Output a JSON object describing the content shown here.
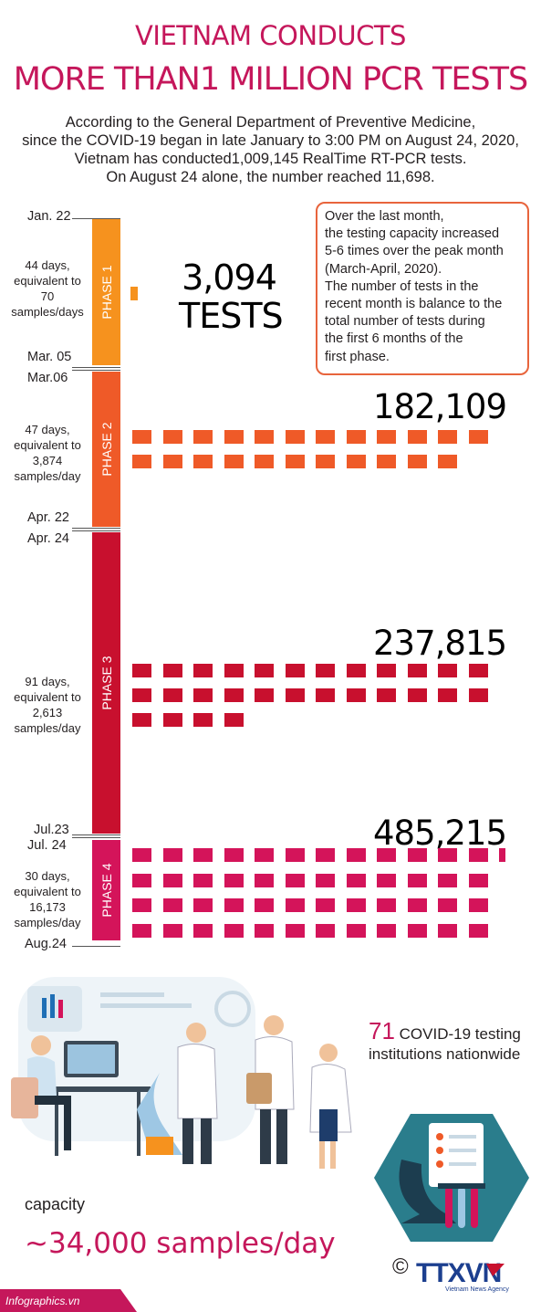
{
  "header": {
    "title_line1": "VIETNAM CONDUCTS",
    "title_line2": "MORE THAN1 MILLION PCR TESTS"
  },
  "intro": {
    "line1": "According to the General Department of Preventive Medicine,",
    "line2": "since the COVID-19 began in late January to 3:00 PM on August 24, 2020,",
    "line3": "Vietnam has conducted1,009,145 RealTime RT-PCR tests.",
    "line4": "On August 24 alone, the number reached 11,698."
  },
  "callout": {
    "lines": [
      "Over the last month,",
      "the testing capacity increased",
      "5-6 times over the peak month",
      "(March-April, 2020).",
      "The number of tests in the",
      "recent month is balance to the",
      "total number of tests during",
      "the first 6 months of the",
      "first phase."
    ]
  },
  "phases": [
    {
      "label": "PHASE 1",
      "start": "Jan. 22",
      "end": "Mar. 05",
      "desc": [
        "44 days,",
        "equivalent to",
        "70",
        "samples/days"
      ],
      "tests": "3,094",
      "tests_unit": "TESTS",
      "color": "#f6921e"
    },
    {
      "label": "PHASE 2",
      "start": "Mar.06",
      "end": "Apr. 22",
      "desc": [
        "47 days,",
        "equivalent to",
        "3,874",
        "samples/day"
      ],
      "tests": "182,109",
      "color": "#ef5a28"
    },
    {
      "label": "PHASE 3",
      "start": "Apr. 24",
      "end": "Jul.23",
      "desc": [
        "91 days,",
        "equivalent to",
        "2,613",
        "samples/day"
      ],
      "tests": "237,815",
      "color": "#c8102e"
    },
    {
      "label": "PHASE 4",
      "start": "Jul. 24",
      "end": "Aug.24",
      "desc": [
        "30 days,",
        "equivalent to",
        "16,173",
        "samples/day"
      ],
      "tests": "485,215",
      "color": "#d4145a"
    }
  ],
  "stats": {
    "institutions_number": "71",
    "institutions_text_1": "COVID-19 testing",
    "institutions_text_2": "institutions nationwide",
    "capacity_label": "capacity",
    "capacity_value": "~34,000 samples/day"
  },
  "footer": {
    "source": "Infographics.vn",
    "copyright": "©",
    "agency": "TTXVN",
    "agency_sub": "Vietnam News Agency"
  }
}
